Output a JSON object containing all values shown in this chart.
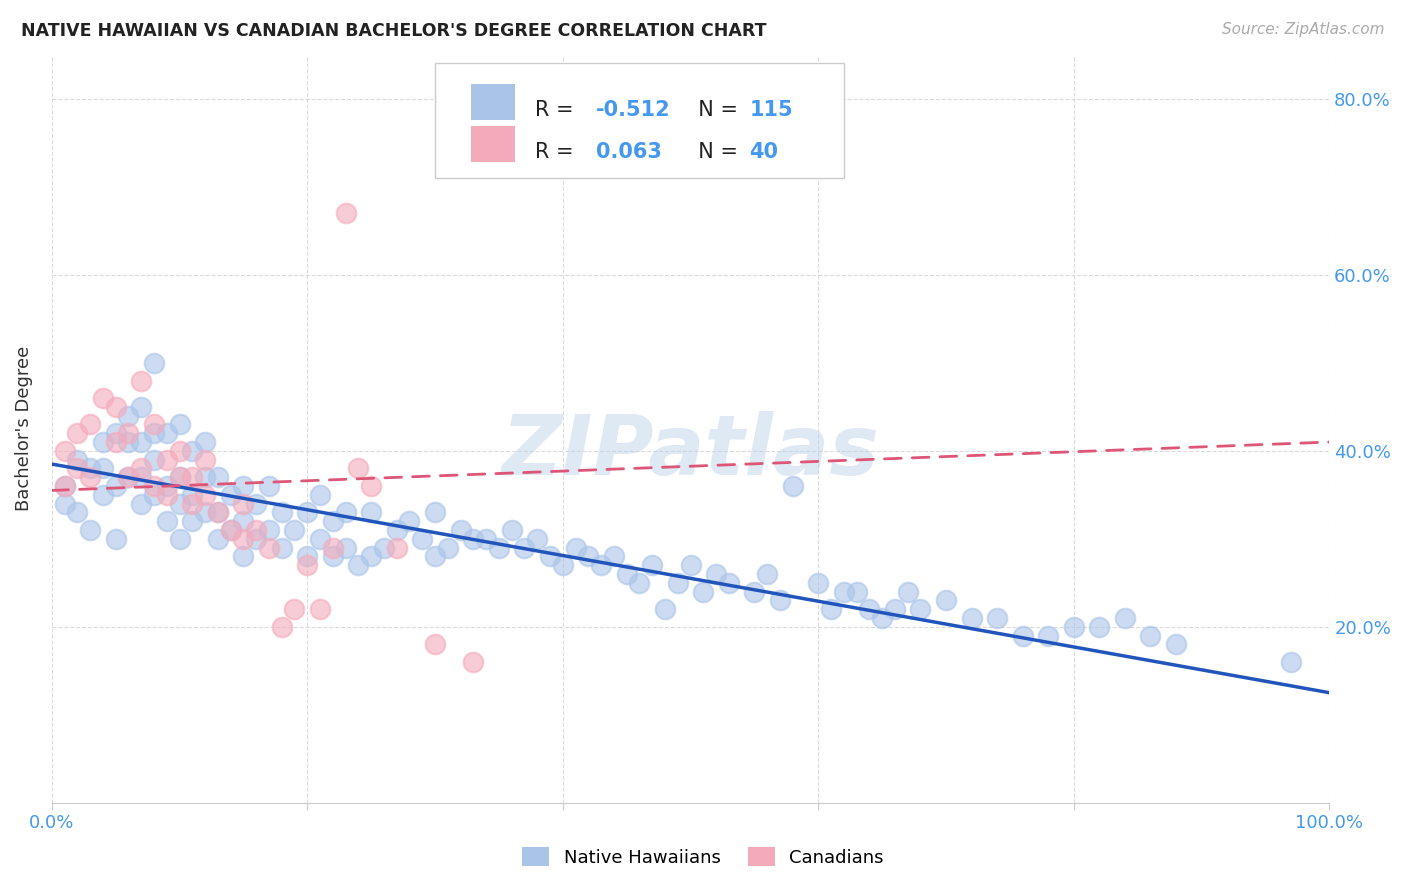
{
  "title": "NATIVE HAWAIIAN VS CANADIAN BACHELOR'S DEGREE CORRELATION CHART",
  "source": "Source: ZipAtlas.com",
  "ylabel": "Bachelor's Degree",
  "watermark": "ZIPatlas",
  "color_blue": "#aac4e8",
  "color_pink": "#f4aabb",
  "color_blue_line": "#2255bb",
  "color_pink_line": "#dd5577",
  "color_axis_label": "#4499ee",
  "background": "#ffffff",
  "grid_color": "#cccccc",
  "xlim": [
    0,
    1.0
  ],
  "ylim": [
    0.0,
    0.85
  ],
  "yticks_right": [
    0.2,
    0.4,
    0.6,
    0.8
  ],
  "ytick_labels_right": [
    "20.0%",
    "40.0%",
    "60.0%",
    "80.0%"
  ],
  "blue_line_x0": 0.0,
  "blue_line_x1": 1.0,
  "blue_line_y0": 0.385,
  "blue_line_y1": 0.125,
  "pink_line_x0": 0.0,
  "pink_line_x1": 1.0,
  "pink_line_y0": 0.355,
  "pink_line_y1": 0.41,
  "blue_scatter_x": [
    0.01,
    0.01,
    0.02,
    0.02,
    0.03,
    0.03,
    0.04,
    0.04,
    0.04,
    0.05,
    0.05,
    0.05,
    0.06,
    0.06,
    0.06,
    0.07,
    0.07,
    0.07,
    0.07,
    0.08,
    0.08,
    0.08,
    0.08,
    0.09,
    0.09,
    0.09,
    0.1,
    0.1,
    0.1,
    0.1,
    0.11,
    0.11,
    0.11,
    0.12,
    0.12,
    0.12,
    0.13,
    0.13,
    0.13,
    0.14,
    0.14,
    0.15,
    0.15,
    0.15,
    0.16,
    0.16,
    0.17,
    0.17,
    0.18,
    0.18,
    0.19,
    0.2,
    0.2,
    0.21,
    0.21,
    0.22,
    0.22,
    0.23,
    0.23,
    0.24,
    0.25,
    0.25,
    0.26,
    0.27,
    0.28,
    0.29,
    0.3,
    0.3,
    0.31,
    0.32,
    0.33,
    0.34,
    0.35,
    0.36,
    0.37,
    0.38,
    0.39,
    0.4,
    0.41,
    0.42,
    0.43,
    0.44,
    0.45,
    0.46,
    0.47,
    0.48,
    0.49,
    0.5,
    0.51,
    0.52,
    0.53,
    0.55,
    0.56,
    0.57,
    0.58,
    0.6,
    0.61,
    0.62,
    0.63,
    0.64,
    0.65,
    0.66,
    0.67,
    0.68,
    0.7,
    0.72,
    0.74,
    0.76,
    0.78,
    0.8,
    0.82,
    0.84,
    0.86,
    0.88,
    0.97
  ],
  "blue_scatter_y": [
    0.36,
    0.34,
    0.33,
    0.39,
    0.38,
    0.31,
    0.38,
    0.35,
    0.41,
    0.3,
    0.36,
    0.42,
    0.37,
    0.41,
    0.44,
    0.34,
    0.37,
    0.41,
    0.45,
    0.35,
    0.39,
    0.42,
    0.5,
    0.32,
    0.36,
    0.42,
    0.3,
    0.34,
    0.37,
    0.43,
    0.32,
    0.35,
    0.4,
    0.33,
    0.37,
    0.41,
    0.3,
    0.33,
    0.37,
    0.31,
    0.35,
    0.28,
    0.32,
    0.36,
    0.3,
    0.34,
    0.31,
    0.36,
    0.29,
    0.33,
    0.31,
    0.28,
    0.33,
    0.3,
    0.35,
    0.28,
    0.32,
    0.29,
    0.33,
    0.27,
    0.28,
    0.33,
    0.29,
    0.31,
    0.32,
    0.3,
    0.28,
    0.33,
    0.29,
    0.31,
    0.3,
    0.3,
    0.29,
    0.31,
    0.29,
    0.3,
    0.28,
    0.27,
    0.29,
    0.28,
    0.27,
    0.28,
    0.26,
    0.25,
    0.27,
    0.22,
    0.25,
    0.27,
    0.24,
    0.26,
    0.25,
    0.24,
    0.26,
    0.23,
    0.36,
    0.25,
    0.22,
    0.24,
    0.24,
    0.22,
    0.21,
    0.22,
    0.24,
    0.22,
    0.23,
    0.21,
    0.21,
    0.19,
    0.19,
    0.2,
    0.2,
    0.21,
    0.19,
    0.18,
    0.16
  ],
  "pink_scatter_x": [
    0.01,
    0.01,
    0.02,
    0.02,
    0.03,
    0.03,
    0.04,
    0.05,
    0.05,
    0.06,
    0.06,
    0.07,
    0.07,
    0.08,
    0.08,
    0.09,
    0.09,
    0.1,
    0.1,
    0.11,
    0.11,
    0.12,
    0.12,
    0.13,
    0.14,
    0.15,
    0.15,
    0.16,
    0.17,
    0.18,
    0.19,
    0.2,
    0.21,
    0.22,
    0.23,
    0.24,
    0.25,
    0.27,
    0.3,
    0.33
  ],
  "pink_scatter_y": [
    0.36,
    0.4,
    0.38,
    0.42,
    0.37,
    0.43,
    0.46,
    0.41,
    0.45,
    0.37,
    0.42,
    0.48,
    0.38,
    0.36,
    0.43,
    0.39,
    0.35,
    0.37,
    0.4,
    0.34,
    0.37,
    0.35,
    0.39,
    0.33,
    0.31,
    0.3,
    0.34,
    0.31,
    0.29,
    0.2,
    0.22,
    0.27,
    0.22,
    0.29,
    0.67,
    0.38,
    0.36,
    0.29,
    0.18,
    0.16
  ]
}
